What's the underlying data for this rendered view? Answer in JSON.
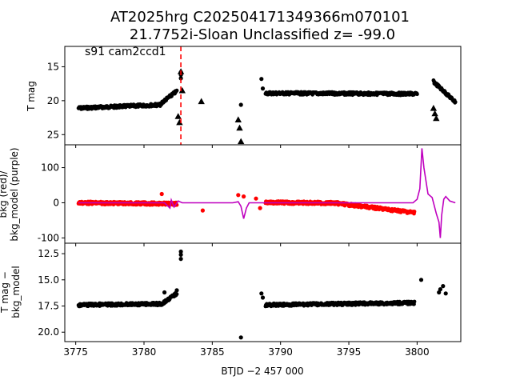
{
  "figure": {
    "title_line1": "AT2025hrg  C202504171349366m070101",
    "title_line2": "21.7752i-Sloan Unclassified z= -99.0",
    "xlabel": "BTJD −2 457 000"
  },
  "chart_data": [
    {
      "type": "scatter",
      "panel": "top",
      "ylabel": "T mag",
      "annotation": "s91 cam2ccd1",
      "y_inverted": true,
      "xlim": [
        3774.2,
        3803.2
      ],
      "ylim": [
        26.5,
        12.0
      ],
      "yticks": [
        15,
        20,
        25
      ],
      "marker_line_x": 3782.7,
      "marker_line_color": "#ff0000",
      "series": [
        {
          "marker": "circle",
          "color": "#000000",
          "segments": [
            {
              "x": [
                3775.2,
                3781.3
              ],
              "y": [
                21.1,
                20.6
              ]
            },
            {
              "x": [
                3781.3,
                3782.4
              ],
              "y": [
                20.3,
                18.6
              ]
            },
            {
              "x": [
                3788.9,
                3800.0
              ],
              "y": [
                18.9,
                19.0
              ]
            },
            {
              "x": [
                3801.2,
                3802.8
              ],
              "y": [
                17.2,
                20.2
              ]
            }
          ],
          "points": [
            [
              3782.7,
              15.8
            ],
            [
              3782.7,
              16.2
            ],
            [
              3782.7,
              16.7
            ],
            [
              3788.6,
              16.8
            ],
            [
              3788.7,
              18.2
            ],
            [
              3787.1,
              20.6
            ]
          ]
        },
        {
          "marker": "triangle",
          "color": "#000000",
          "points": [
            [
              3782.5,
              22.3
            ],
            [
              3782.6,
              23.2
            ],
            [
              3784.2,
              20.1
            ],
            [
              3786.9,
              22.8
            ],
            [
              3787.0,
              24.0
            ],
            [
              3787.1,
              26.0
            ],
            [
              3801.2,
              21.1
            ],
            [
              3801.3,
              21.9
            ],
            [
              3801.4,
              22.6
            ],
            [
              3782.7,
              15.7
            ],
            [
              3782.8,
              18.5
            ]
          ]
        }
      ]
    },
    {
      "type": "line+scatter",
      "panel": "middle",
      "ylabel_line1": "bkg (red)/",
      "ylabel_line2": "bkg_model (purple)",
      "xlim": [
        3774.2,
        3803.2
      ],
      "ylim": [
        -115,
        165
      ],
      "yticks": [
        -100,
        0,
        100
      ],
      "series": [
        {
          "name": "bkg",
          "color": "#ff0000",
          "segments": [
            {
              "x": [
                3775.2,
                3782.4
              ],
              "y": [
                0,
                -3
              ]
            },
            {
              "x": [
                3788.9,
                3794.0
              ],
              "y": [
                1,
                -1
              ]
            },
            {
              "x": [
                3794.0,
                3799.8
              ],
              "y": [
                -1,
                -28
              ]
            }
          ],
          "points": [
            [
              3781.3,
              25
            ],
            [
              3784.3,
              -22
            ],
            [
              3786.9,
              22
            ],
            [
              3787.3,
              18
            ],
            [
              3788.2,
              12
            ],
            [
              3788.5,
              -15
            ]
          ]
        },
        {
          "name": "bkg_model",
          "color": "#bf00bf",
          "line": {
            "x": [
              3775.2,
              3781.5,
              3781.9,
              3782.0,
              3782.2,
              3782.5,
              3782.8,
              3783.5,
              3786.5,
              3786.9,
              3787.1,
              3787.3,
              3787.5,
              3787.7,
              3788.6,
              3795.0,
              3799.7,
              3800.0,
              3800.2,
              3800.35,
              3800.5,
              3800.8,
              3801.1,
              3801.4,
              3801.6,
              3801.7,
              3801.8,
              3801.95,
              3802.1,
              3802.4,
              3802.8
            ],
            "y": [
              0,
              0,
              -15,
              8,
              -12,
              5,
              0,
              0,
              0,
              3,
              -10,
              -45,
              -15,
              0,
              0,
              0,
              0,
              10,
              40,
              155,
              100,
              25,
              15,
              -30,
              -55,
              -100,
              -35,
              10,
              18,
              5,
              0
            ]
          }
        }
      ]
    },
    {
      "type": "scatter",
      "panel": "bottom",
      "ylabel_line1": "T mag −",
      "ylabel_line2": "bkg_model",
      "y_inverted": true,
      "xlim": [
        3774.2,
        3803.2
      ],
      "ylim": [
        20.9,
        11.5
      ],
      "yticks": [
        12.5,
        15.0,
        17.5,
        20.0
      ],
      "series": [
        {
          "marker": "circle",
          "color": "#000000",
          "segments": [
            {
              "x": [
                3775.2,
                3781.3
              ],
              "y": [
                17.4,
                17.3
              ]
            },
            {
              "x": [
                3781.3,
                3782.4
              ],
              "y": [
                17.3,
                16.3
              ]
            },
            {
              "x": [
                3788.9,
                3799.8
              ],
              "y": [
                17.4,
                17.2
              ]
            }
          ],
          "points": [
            [
              3781.5,
              16.2
            ],
            [
              3782.4,
              16.0
            ],
            [
              3782.7,
              12.3
            ],
            [
              3782.7,
              12.6
            ],
            [
              3782.7,
              13.0
            ],
            [
              3788.6,
              16.3
            ],
            [
              3788.7,
              16.7
            ],
            [
              3787.1,
              20.5
            ],
            [
              3800.3,
              15.0
            ],
            [
              3801.6,
              16.2
            ],
            [
              3801.7,
              15.9
            ],
            [
              3801.9,
              15.6
            ],
            [
              3802.1,
              16.3
            ]
          ]
        }
      ]
    }
  ],
  "xticks": [
    3775,
    3780,
    3785,
    3790,
    3795,
    3800
  ]
}
